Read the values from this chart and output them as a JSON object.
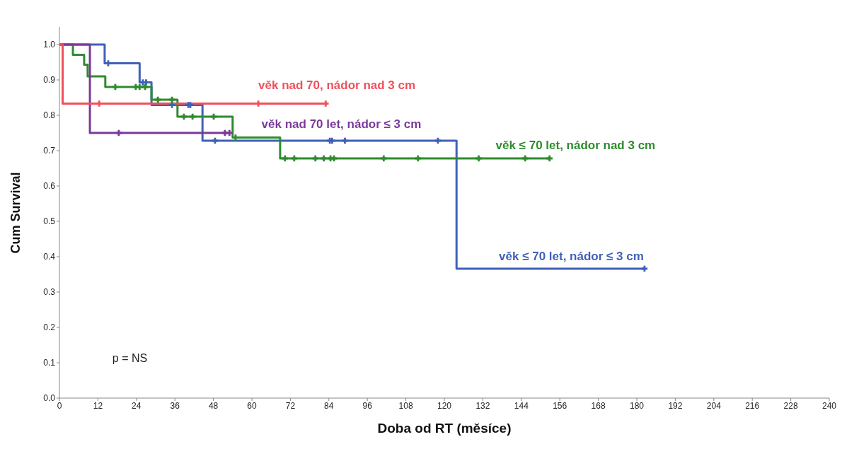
{
  "chart_data": {
    "type": "step",
    "xlabel": "Doba od RT (měsíce)",
    "ylabel": "Cum Survival",
    "xlim": [
      0,
      240
    ],
    "xticks": [
      0,
      12,
      24,
      36,
      48,
      60,
      72,
      84,
      96,
      108,
      120,
      132,
      144,
      156,
      168,
      180,
      192,
      204,
      216,
      228,
      240
    ],
    "ylim": [
      0,
      1.05
    ],
    "yticks": [
      {
        "value": 0,
        "label": "0.0"
      },
      {
        "value": 0.1,
        "label": "0.1"
      },
      {
        "value": 0.2,
        "label": "0.2"
      },
      {
        "value": 0.3,
        "label": "0.3"
      },
      {
        "value": 0.4,
        "label": "0.4"
      },
      {
        "value": 0.5,
        "label": "0.5"
      },
      {
        "value": 0.6,
        "label": "0.6"
      },
      {
        "value": 0.7,
        "label": "0.7"
      },
      {
        "value": 0.8,
        "label": "0.8"
      },
      {
        "value": 0.9,
        "label": "0.9"
      },
      {
        "value": 1,
        "label": "1.0"
      }
    ],
    "grid": false,
    "legend": false,
    "line_style": "solid",
    "annotations": [
      "p = NS"
    ],
    "series": [
      {
        "name": "věk nad 70, nádor nad 3 cm",
        "color": "#f0505a",
        "x": [
          0,
          1,
          12.4,
          62,
          83
        ],
        "values": [
          1,
          0.833,
          0.833,
          0.833,
          0.833
        ]
      },
      {
        "name": "věk nad 70 let, nádor ≤ 3 cm",
        "color": "#7a3a9a",
        "x": [
          0,
          9.5,
          53
        ],
        "values": [
          1,
          0.75,
          0.75
        ]
      },
      {
        "name": "věk ≤ 70 let, nádor nad 3 cm",
        "color": "#2e8b2e",
        "x": [
          0,
          4.2,
          7.7,
          8.8,
          14.3,
          28.7,
          36.8,
          54,
          68.8,
          152.8
        ],
        "values": [
          1,
          0.971,
          0.943,
          0.91,
          0.88,
          0.844,
          0.796,
          0.737,
          0.678,
          0.678
        ]
      },
      {
        "name": "věk ≤ 70 let, nádor ≤ 3 cm",
        "color": "#4060b8",
        "x": [
          0,
          14.1,
          25,
          28.7,
          44.6,
          123.8,
          182.4
        ],
        "values": [
          1,
          0.947,
          0.893,
          0.829,
          0.728,
          0.366,
          0.366
        ]
      },
      {
        "type": "scatter",
        "marker": "cross",
        "color": "#f0505a",
        "x": [
          12.4,
          62,
          83
        ],
        "values": [
          0.833,
          0.833,
          0.833
        ]
      },
      {
        "type": "scatter",
        "marker": "cross",
        "color": "#7a3a9a",
        "x": [
          18.5,
          51.6,
          53
        ],
        "values": [
          0.75,
          0.75,
          0.75
        ]
      },
      {
        "type": "scatter",
        "marker": "cross",
        "color": "#2e8b2e",
        "x": [
          17.4,
          23.8,
          25,
          26.7,
          30.7,
          35.1,
          38.8,
          41.5,
          48.1,
          54.9,
          70.3,
          73.2,
          79.8,
          82.4,
          84.5,
          85.6,
          101.1,
          111.8,
          130.7,
          145.2,
          152.8
        ],
        "values": [
          0.88,
          0.88,
          0.88,
          0.88,
          0.844,
          0.844,
          0.796,
          0.796,
          0.796,
          0.737,
          0.678,
          0.678,
          0.678,
          0.678,
          0.678,
          0.678,
          0.678,
          0.678,
          0.678,
          0.678,
          0.678
        ]
      },
      {
        "type": "scatter",
        "marker": "cross",
        "color": "#4060b8",
        "x": [
          15.2,
          26,
          27,
          35.1,
          40.2,
          40.8,
          48.5,
          84.3,
          85,
          89,
          118,
          182.4
        ],
        "values": [
          0.947,
          0.893,
          0.893,
          0.829,
          0.829,
          0.829,
          0.728,
          0.728,
          0.728,
          0.728,
          0.728,
          0.366
        ]
      }
    ]
  }
}
